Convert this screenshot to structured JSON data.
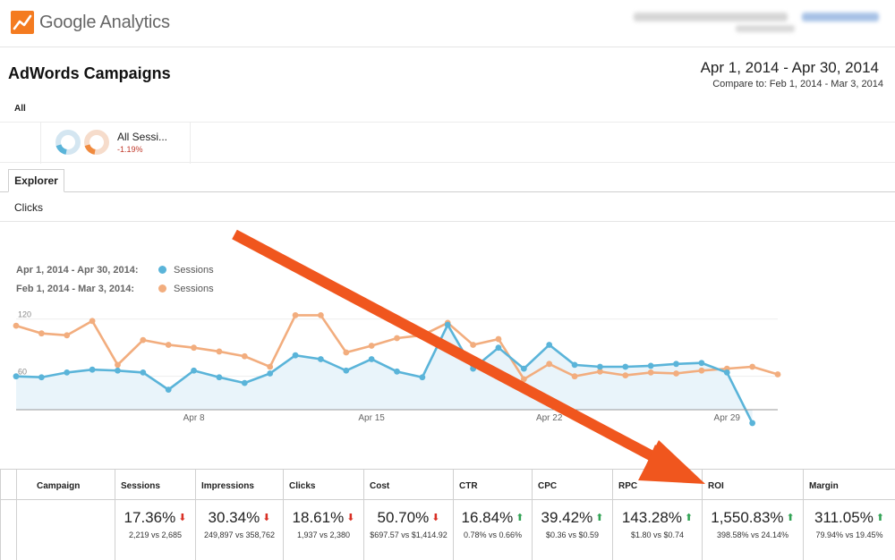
{
  "app": {
    "logo_text": "Google Analytics"
  },
  "report": {
    "title": "AdWords Campaigns",
    "date_range": "Apr 1, 2014 - Apr 30, 2014",
    "compare_range": "Compare to: Feb 1, 2014 - Mar 3, 2014"
  },
  "segments": {
    "label": "All",
    "items": [
      {
        "name": "All Sessi...",
        "change": "-1.19%"
      }
    ]
  },
  "tabs": [
    {
      "label": "Explorer",
      "active": true
    }
  ],
  "metric_selector": {
    "label": "Clicks"
  },
  "legend": [
    {
      "range": "Apr 1, 2014 - Apr 30, 2014:",
      "metric": "Sessions",
      "color": "#5ab4d9"
    },
    {
      "range": "Feb 1, 2014 - Mar 3, 2014:",
      "metric": "Sessions",
      "color": "#f2ad7e"
    }
  ],
  "chart_data": {
    "type": "line",
    "x_tick_labels": [
      "Apr 8",
      "Apr 15",
      "Apr 22",
      "Apr 29"
    ],
    "y_tick_labels": [
      "60",
      "120"
    ],
    "ylim": [
      25,
      145
    ],
    "series": [
      {
        "name": "Sessions (Apr 1, 2014 - Apr 30, 2014)",
        "color": "#5ab4d9",
        "values": [
          60,
          59,
          64,
          67,
          66,
          64,
          46,
          66,
          59,
          53,
          63,
          82,
          78,
          66,
          78,
          65,
          59,
          114,
          68,
          90,
          68,
          93,
          72,
          70,
          70,
          71,
          73,
          74,
          64,
          11
        ]
      },
      {
        "name": "Sessions (Feb 1, 2014 - Mar 3, 2014)",
        "color": "#f2ad7e",
        "values": [
          113,
          105,
          103,
          118,
          72,
          98,
          93,
          90,
          86,
          81,
          70,
          124,
          124,
          85,
          92,
          100,
          103,
          116,
          93,
          99,
          57,
          73,
          60,
          65,
          61,
          64,
          63,
          66,
          68,
          70,
          62
        ]
      }
    ]
  },
  "table": {
    "columns": [
      "Campaign",
      "Sessions",
      "Impressions",
      "Clicks",
      "Cost",
      "CTR",
      "CPC",
      "RPC",
      "ROI",
      "Margin"
    ],
    "cells": [
      {
        "value": "17.36%",
        "detail": "2,219 vs 2,685",
        "trend": "down"
      },
      {
        "value": "30.34%",
        "detail": "249,897 vs 358,762",
        "trend": "down"
      },
      {
        "value": "18.61%",
        "detail": "1,937 vs 2,380",
        "trend": "down"
      },
      {
        "value": "50.70%",
        "detail": "$697.57 vs $1,414.92",
        "trend": "down"
      },
      {
        "value": "16.84%",
        "detail": "0.78% vs 0.66%",
        "trend": "up"
      },
      {
        "value": "39.42%",
        "detail": "$0.36 vs $0.59",
        "trend": "up"
      },
      {
        "value": "143.28%",
        "detail": "$1.80 vs $0.74",
        "trend": "up"
      },
      {
        "value": "1,550.83%",
        "detail": "398.58% vs 24.14%",
        "trend": "up"
      },
      {
        "value": "311.05%",
        "detail": "79.94% vs 19.45%",
        "trend": "up"
      }
    ]
  },
  "colors": {
    "annotation_arrow": "#f0561e",
    "trend_down": "#d93025",
    "trend_up": "#31a354"
  }
}
